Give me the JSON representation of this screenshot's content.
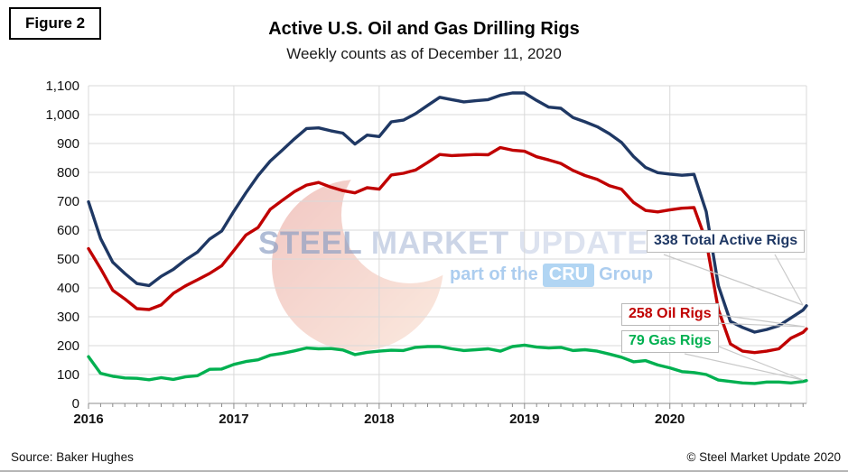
{
  "figure_label": "Figure 2",
  "header": {
    "title": "Active U.S. Oil and Gas Drilling Rigs",
    "subtitle": "Weekly counts as of December 11, 2020"
  },
  "watermark": {
    "steel": "STEEL",
    "market": "MARKET",
    "update": "UPDATE",
    "tagline_prefix": "part of the",
    "cru_badge": "CRU",
    "tagline_suffix": "Group"
  },
  "annotations": [
    {
      "label": "338 Total Active Rigs",
      "value": 338,
      "color": "#1f3864"
    },
    {
      "label": "258 Oil Rigs",
      "value": 258,
      "color": "#c00000"
    },
    {
      "label": "79 Gas Rigs",
      "value": 79,
      "color": "#00b050"
    }
  ],
  "footer": {
    "source": "Source: Baker Hughes",
    "copyright": "© Steel Market Update 2020"
  },
  "chart_data": {
    "type": "line",
    "title": "Active U.S. Oil and Gas Drilling Rigs",
    "subtitle": "Weekly counts as of December 11, 2020",
    "xlabel": "",
    "ylabel": "",
    "x_tick_labels": [
      "2016",
      "2017",
      "2018",
      "2019",
      "2020"
    ],
    "x_start_year": 2016,
    "x_span_years": 4.94,
    "points_per_year": 12,
    "ylim": [
      0,
      1100
    ],
    "y_tick_step": 100,
    "grid": true,
    "legend": "inline-callouts",
    "series": [
      {
        "name": "Total Active Rigs",
        "color": "#1f3864",
        "final_value": 338,
        "values": [
          698,
          571,
          489,
          450,
          415,
          408,
          440,
          464,
          497,
          524,
          569,
          597,
          665,
          729,
          789,
          839,
          877,
          916,
          952,
          954,
          944,
          936,
          898,
          929,
          924,
          975,
          981,
          1003,
          1032,
          1060,
          1052,
          1044,
          1048,
          1052,
          1067,
          1075,
          1075,
          1049,
          1026,
          1022,
          990,
          975,
          958,
          934,
          904,
          855,
          817,
          799,
          794,
          790,
          793,
          664,
          408,
          284,
          263,
          247,
          256,
          269,
          296,
          323,
          338
        ]
      },
      {
        "name": "Oil Rigs",
        "color": "#c00000",
        "final_value": 258,
        "values": [
          536,
          467,
          392,
          362,
          328,
          325,
          341,
          381,
          407,
          428,
          450,
          477,
          529,
          583,
          609,
          672,
          703,
          733,
          756,
          765,
          749,
          737,
          729,
          747,
          742,
          791,
          797,
          808,
          834,
          862,
          858,
          860,
          862,
          861,
          886,
          877,
          873,
          854,
          843,
          831,
          807,
          789,
          776,
          754,
          742,
          696,
          668,
          663,
          670,
          676,
          678,
          562,
          325,
          206,
          181,
          176,
          181,
          189,
          226,
          246,
          258
        ]
      },
      {
        "name": "Gas Rigs",
        "color": "#00b050",
        "final_value": 79,
        "values": [
          162,
          104,
          94,
          88,
          87,
          82,
          89,
          83,
          92,
          96,
          118,
          119,
          135,
          145,
          151,
          167,
          173,
          182,
          192,
          189,
          190,
          185,
          169,
          177,
          181,
          184,
          183,
          194,
          197,
          197,
          189,
          183,
          186,
          189,
          181,
          197,
          202,
          195,
          192,
          194,
          183,
          186,
          181,
          171,
          160,
          144,
          148,
          133,
          123,
          110,
          107,
          100,
          81,
          76,
          71,
          69,
          74,
          74,
          71,
          76,
          79
        ]
      }
    ]
  }
}
